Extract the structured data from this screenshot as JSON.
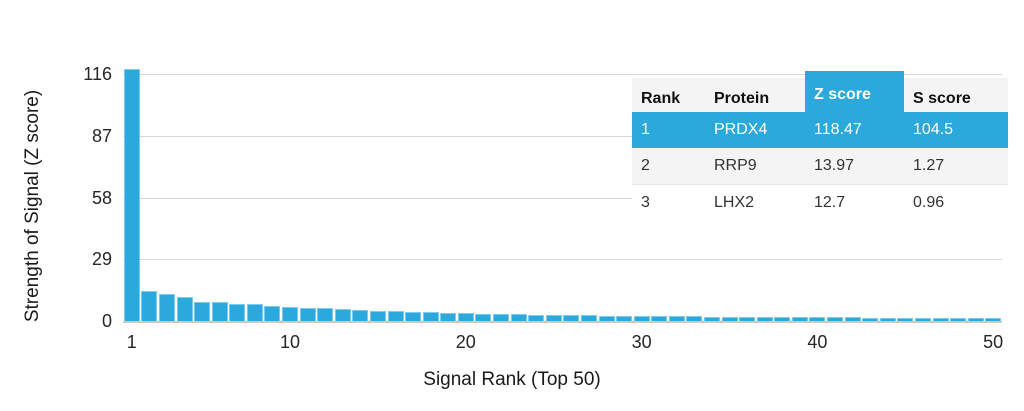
{
  "chart_data": {
    "type": "bar",
    "title": "",
    "xlabel": "Signal Rank (Top 50)",
    "ylabel": "Strength of Signal (Z score)",
    "yticks": [
      0,
      29,
      58,
      87,
      116
    ],
    "xticks": [
      1,
      10,
      20,
      30,
      40,
      50
    ],
    "ylim": [
      0,
      124
    ],
    "grid": true,
    "bar_color": "#2ba8dc",
    "categories": [
      1,
      2,
      3,
      4,
      5,
      6,
      7,
      8,
      9,
      10,
      11,
      12,
      13,
      14,
      15,
      16,
      17,
      18,
      19,
      20,
      21,
      22,
      23,
      24,
      25,
      26,
      27,
      28,
      29,
      30,
      31,
      32,
      33,
      34,
      35,
      36,
      37,
      38,
      39,
      40,
      41,
      42,
      43,
      44,
      45,
      46,
      47,
      48,
      49,
      50
    ],
    "values": [
      118.47,
      13.97,
      12.7,
      11.1,
      9.0,
      8.8,
      8.0,
      7.8,
      7.0,
      6.6,
      6.3,
      6.0,
      5.6,
      5.2,
      4.9,
      4.6,
      4.3,
      4.1,
      3.9,
      3.7,
      3.5,
      3.3,
      3.2,
      3.0,
      2.9,
      2.8,
      2.7,
      2.6,
      2.5,
      2.4,
      2.3,
      2.25,
      2.2,
      2.1,
      2.05,
      2.0,
      1.95,
      1.9,
      1.85,
      1.8,
      1.75,
      1.7,
      1.65,
      1.6,
      1.55,
      1.5,
      1.45,
      1.4,
      1.3,
      1.2
    ]
  },
  "table": {
    "accent_color": "#2ba8dc",
    "headers": [
      "Rank",
      "Protein",
      "Z score",
      "S score"
    ],
    "highlight_column_index": 2,
    "rows": [
      {
        "rank": "1",
        "protein": "PRDX4",
        "z_score": "118.47",
        "s_score": "104.5",
        "highlight": true
      },
      {
        "rank": "2",
        "protein": "RRP9",
        "z_score": "13.97",
        "s_score": "1.27",
        "highlight": false
      },
      {
        "rank": "3",
        "protein": "LHX2",
        "z_score": "12.7",
        "s_score": "0.96",
        "highlight": false
      }
    ]
  }
}
